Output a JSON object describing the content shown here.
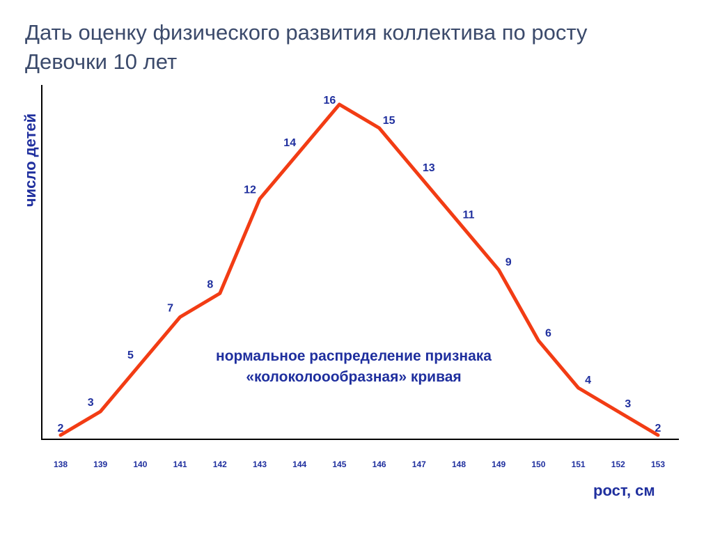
{
  "title": {
    "line1": "Дать оценку физического развития коллектива по росту",
    "line2": "Девочки 10 лет"
  },
  "chart_data": {
    "type": "line",
    "xlabel": "рост, см",
    "ylabel": "число детей",
    "x": [
      138,
      139,
      140,
      141,
      142,
      143,
      144,
      145,
      146,
      147,
      148,
      149,
      150,
      151,
      152,
      153
    ],
    "series": [
      {
        "values": [
          2,
          3,
          5,
          7,
          8,
          12,
          14,
          16,
          15,
          13,
          11,
          9,
          6,
          4,
          3,
          2
        ]
      }
    ],
    "annotation": {
      "line1": "нормальное распределение признака",
      "line2": "«колоколоообразная» кривая"
    },
    "line_color": "#f23c14",
    "text_color": "#1f2f9e",
    "grid": false
  }
}
